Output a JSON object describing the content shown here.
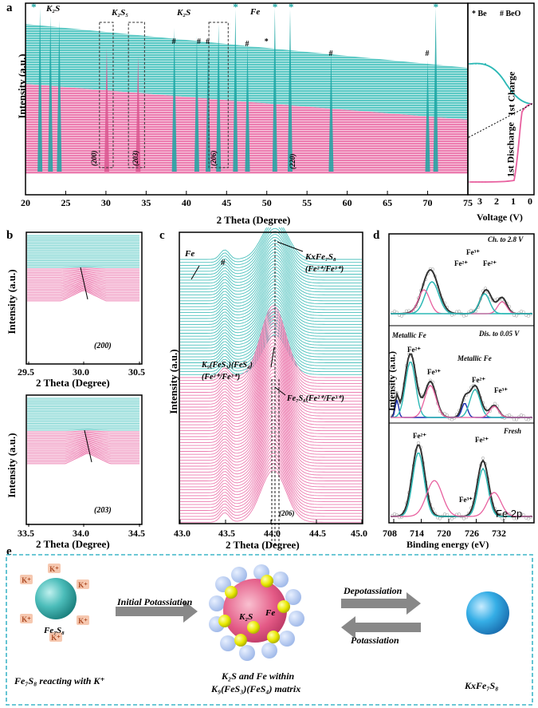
{
  "panel_a": {
    "letter": "a",
    "ylabel": "Intensity (a.u.)",
    "xlabel": "2 Theta (Degree)",
    "xticks": [
      "20",
      "25",
      "30",
      "35",
      "40",
      "45",
      "50",
      "55",
      "60",
      "65",
      "70",
      "75"
    ],
    "labels": {
      "k2s_1": "K₂S",
      "k2s5": "K₂S₅",
      "k2s_2": "K₂S",
      "fe": "Fe"
    },
    "hkl": [
      "(200)",
      "(203)",
      "(206)",
      "(220)"
    ],
    "legend": {
      "be": "* Be",
      "beo": "# BeO"
    },
    "side": {
      "charge": "1st Charge",
      "discharge": "1st Discharge",
      "xlabel": "Voltage (V)",
      "xticks": [
        "3",
        "2",
        "1",
        "0"
      ]
    }
  },
  "panel_b": {
    "letter": "b",
    "ylabel": "Intensity (a.u.)",
    "xlabel": "2 Theta (Degree)",
    "top": {
      "hkl": "(200)",
      "xticks": [
        "29.5",
        "30.0",
        "30.5"
      ]
    },
    "bottom": {
      "hkl": "(203)",
      "xticks": [
        "33.5",
        "34.0",
        "34.5"
      ]
    }
  },
  "panel_c": {
    "letter": "c",
    "ylabel": "Intensity (a.u.)",
    "xlabel": "2 Theta (Degree)",
    "xticks": [
      "43.0",
      "43.5",
      "44.0",
      "44.5",
      "45.0"
    ],
    "fe": "Fe",
    "hash": "#",
    "kx": "KxFe₇S₈",
    "kx_ox": "(Fe²⁺/Fe³⁺)",
    "k9": "K₉(FeS₃)(FeS₄)",
    "k9_ox": "(Fe²⁺/Fe³⁺)",
    "fe7": "Fe₇S₈(Fe²⁺/Fe³⁺)",
    "hkl": "(206)"
  },
  "panel_d": {
    "letter": "d",
    "ylabel": "Intensity (a.u.)",
    "xlabel": "Binding energy (eV)",
    "xticks": [
      "708",
      "714",
      "720",
      "726",
      "732"
    ],
    "top": {
      "cond": "Ch. to 2.8 V",
      "fe3": "Fe³⁺",
      "fe2a": "Fe²⁺",
      "fe2b": "Fe²⁺"
    },
    "mid": {
      "cond": "Dis. to 0.05 V",
      "metal1": "Metallic Fe",
      "metal2": "Metallic Fe",
      "fe2a": "Fe²⁺",
      "fe3a": "Fe³⁺",
      "fe2b": "Fe²⁺",
      "fe3b": "Fe³⁺"
    },
    "bot": {
      "cond": "Fresh",
      "fe2a": "Fe²⁺",
      "fe2b": "Fe²⁺",
      "fe3": "Fe³⁺",
      "tag": "Fe 2p"
    }
  },
  "panel_e": {
    "letter": "e",
    "ion": "K⁺",
    "fe7s8": "Fe₇S₈",
    "step1": "Initial Potassiation",
    "k2s": "K₂S",
    "fe": "Fe",
    "depot": "Depotassiation",
    "pot": "Potassiation",
    "cap1": "Fe₇S₈ reacting with K⁺",
    "cap2a": "K₂S and Fe within",
    "cap2b": "K₉(FeS₃)(FeS₄) matrix",
    "cap3": "KxFe₇S₈"
  },
  "colors": {
    "teal": "#2bb8b5",
    "pink": "#e8609f",
    "dark": "#333333"
  }
}
